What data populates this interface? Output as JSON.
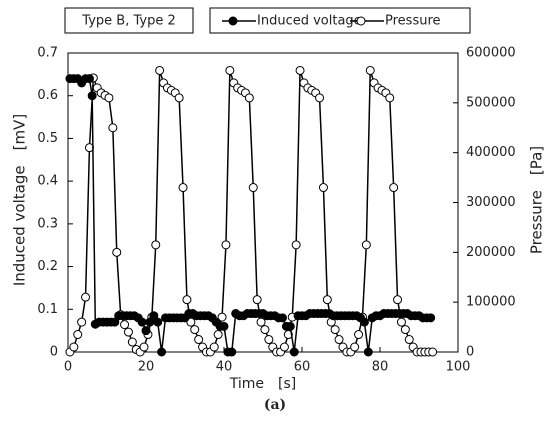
{
  "chart_data": {
    "type": "line",
    "annotation": "Type B, Type 2",
    "caption": "(a)",
    "xlabel": "Time　[s]",
    "ylabel": "Induced voltage　[mV]",
    "y2label": "Pressure　[Pa]",
    "xlim": [
      0,
      100
    ],
    "xticks": [
      0,
      20,
      40,
      60,
      80,
      100
    ],
    "ylim": [
      0,
      0.7
    ],
    "yticks": [
      0,
      0.1,
      0.2,
      0.3,
      0.4,
      0.5,
      0.6,
      0.7
    ],
    "y2lim": [
      0,
      600000
    ],
    "y2ticks": [
      0,
      100000,
      200000,
      300000,
      400000,
      500000,
      600000
    ],
    "series": [
      {
        "name": "Induced voltage",
        "color": "#000000",
        "marker": "filled",
        "x": [
          0.5,
          1.5,
          2.5,
          3.5,
          4.5,
          5.5,
          6.2,
          7,
          8,
          9,
          10,
          11,
          12,
          13,
          14,
          15,
          16,
          17,
          18,
          19,
          20,
          21,
          22,
          23,
          24,
          25,
          26,
          27,
          28,
          29,
          30,
          31,
          32,
          33,
          34,
          35,
          36,
          37,
          38,
          39,
          40,
          41,
          42,
          43,
          44,
          45,
          46,
          47,
          48,
          49,
          50,
          51,
          52,
          53,
          54,
          55,
          56,
          57,
          58,
          59,
          60,
          61,
          62,
          63,
          64,
          65,
          66,
          67,
          68,
          69,
          70,
          71,
          72,
          73,
          74,
          75,
          76,
          77,
          78,
          79,
          80,
          81,
          82,
          83,
          84,
          85,
          86,
          87,
          88,
          89,
          90,
          91,
          92,
          93
        ],
        "values": [
          0.64,
          0.64,
          0.64,
          0.63,
          0.64,
          0.64,
          0.6,
          0.065,
          0.07,
          0.07,
          0.07,
          0.07,
          0.07,
          0.085,
          0.085,
          0.085,
          0.085,
          0.085,
          0.08,
          0.07,
          0.05,
          0.07,
          0.085,
          0.07,
          0,
          0.08,
          0.08,
          0.08,
          0.08,
          0.08,
          0.08,
          0.09,
          0.09,
          0.085,
          0.085,
          0.085,
          0.085,
          0.08,
          0.07,
          0.06,
          0.06,
          0,
          0,
          0.09,
          0.085,
          0.085,
          0.09,
          0.09,
          0.09,
          0.09,
          0.09,
          0.085,
          0.085,
          0.085,
          0.08,
          0.08,
          0.06,
          0.06,
          0,
          0.085,
          0.085,
          0.085,
          0.09,
          0.09,
          0.09,
          0.09,
          0.09,
          0.09,
          0.085,
          0.085,
          0.085,
          0.085,
          0.085,
          0.085,
          0.085,
          0.08,
          0.07,
          0,
          0.08,
          0.085,
          0.085,
          0.09,
          0.09,
          0.09,
          0.09,
          0.09,
          0.09,
          0.09,
          0.085,
          0.085,
          0.085,
          0.08,
          0.08,
          0.08
        ]
      },
      {
        "name": "Pressure",
        "color": "#000000",
        "marker": "open",
        "axis": "y2",
        "x": [
          0.5,
          1.5,
          2.5,
          3.5,
          4.5,
          5.5,
          6.5,
          7.5,
          8.5,
          9.5,
          10.5,
          11.5,
          12.5,
          13.5,
          14.5,
          15.5,
          16.5,
          17.5,
          18.5,
          19.5,
          20.5,
          21.5,
          22.5,
          23.5,
          24.5,
          25.5,
          26.5,
          27.5,
          28.5,
          29.5,
          30.5,
          31.5,
          32.5,
          33.5,
          34.5,
          35.5,
          36.5,
          37.5,
          38.5,
          39.5,
          40.5,
          41.5,
          42.5,
          43.5,
          44.5,
          45.5,
          46.5,
          47.5,
          48.5,
          49.5,
          50.5,
          51.5,
          52.5,
          53.5,
          54.5,
          55.5,
          56.5,
          57.5,
          58.5,
          59.5,
          60.5,
          61.5,
          62.5,
          63.5,
          64.5,
          65.5,
          66.5,
          67.5,
          68.5,
          69.5,
          70.5,
          71.5,
          72.5,
          73.5,
          74.5,
          75.5,
          76.5,
          77.5,
          78.5,
          79.5,
          80.5,
          81.5,
          82.5,
          83.5,
          84.5,
          85.5,
          86.5,
          87.5,
          88.5,
          89.5,
          90.5,
          91.5,
          92.5,
          93.5
        ],
        "values": [
          0,
          10000,
          35000,
          60000,
          110000,
          410000,
          550000,
          530000,
          520000,
          515000,
          510000,
          450000,
          200000,
          75000,
          55000,
          40000,
          20000,
          5000,
          0,
          10000,
          35000,
          70000,
          215000,
          565000,
          540000,
          530000,
          525000,
          520000,
          510000,
          330000,
          105000,
          60000,
          45000,
          25000,
          10000,
          0,
          0,
          10000,
          35000,
          70000,
          215000,
          565000,
          540000,
          530000,
          525000,
          520000,
          510000,
          330000,
          105000,
          60000,
          45000,
          25000,
          10000,
          0,
          0,
          10000,
          35000,
          70000,
          215000,
          565000,
          540000,
          530000,
          525000,
          520000,
          510000,
          330000,
          105000,
          60000,
          45000,
          25000,
          10000,
          0,
          0,
          10000,
          35000,
          70000,
          215000,
          565000,
          540000,
          530000,
          525000,
          520000,
          510000,
          330000,
          105000,
          60000,
          45000,
          25000,
          10000,
          0,
          0,
          0,
          0,
          0
        ]
      }
    ]
  }
}
